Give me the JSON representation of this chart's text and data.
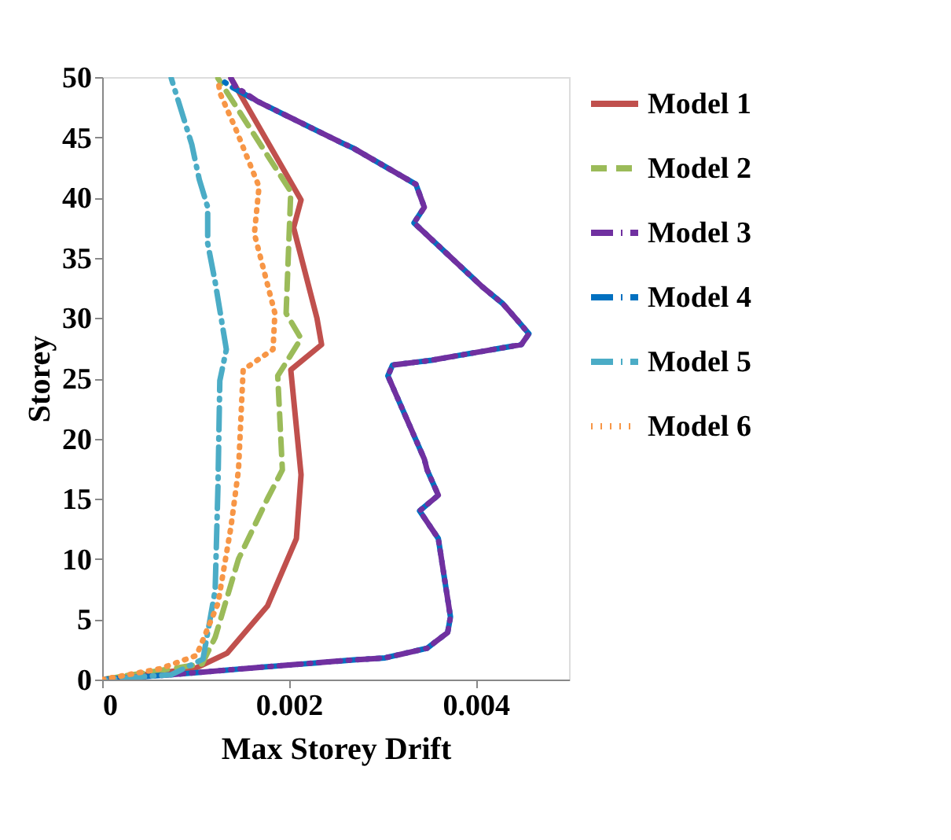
{
  "chart_data": {
    "type": "line",
    "xlabel": "Max Storey Drift",
    "ylabel": "Storey",
    "xlim": [
      0,
      0.005
    ],
    "xticks": [
      0,
      0.002,
      0.004
    ],
    "ylim": [
      0,
      50
    ],
    "yticks": [
      0,
      5,
      10,
      15,
      20,
      25,
      30,
      35,
      40,
      45,
      50
    ],
    "grid": false,
    "legend": "right",
    "marker": "none",
    "series": [
      {
        "name": "Model 1",
        "color": "#c0504d",
        "line_style": "solid",
        "x": [
          0,
          0.00099,
          0.00134,
          0.00177,
          0.00208,
          0.00213,
          0.00202,
          0.00235,
          0.0023,
          0.00205,
          0.00213,
          0.00138
        ],
        "values": [
          0,
          0.9,
          2.2,
          6.1,
          11.7,
          17,
          25.7,
          27.8,
          30,
          37.5,
          39.8,
          49.9
        ]
      },
      {
        "name": "Model 2",
        "color": "#9bbb59",
        "line_style": "dashed",
        "x": [
          0,
          0.00107,
          0.00121,
          0.00146,
          0.00177,
          0.00193,
          0.00188,
          0.00213,
          0.00197,
          0.00202,
          0.00177,
          0.00124
        ],
        "values": [
          0,
          1.3,
          3.5,
          10,
          15,
          17.4,
          25.2,
          28.3,
          30.4,
          40.5,
          43.5,
          49.9
        ]
      },
      {
        "name": "Model 3",
        "color": "#7030a0",
        "line_style": "dashdot",
        "x": [
          0,
          0.00074,
          0.00151,
          0.00264,
          0.00303,
          0.00348,
          0.0037,
          0.00373,
          0.0036,
          0.0034,
          0.0036,
          0.00348,
          0.00345,
          0.00306,
          0.00311,
          0.00353,
          0.00382,
          0.00449,
          0.00457,
          0.00437,
          0.00429,
          0.00407,
          0.00334,
          0.00345,
          0.00336,
          0.00269,
          0.00255,
          0.00166,
          0.00143,
          0.00138
        ],
        "values": [
          0,
          0.4,
          0.9,
          1.6,
          1.8,
          2.6,
          3.9,
          5.2,
          11.7,
          14,
          15.3,
          17.4,
          18.3,
          25.2,
          26.1,
          26.5,
          26.9,
          27.8,
          28.7,
          30.5,
          31.2,
          32.6,
          37.9,
          39.2,
          41.1,
          44.1,
          44.6,
          48,
          49.2,
          49.9
        ]
      },
      {
        "name": "Model 4",
        "color": "#0070c0",
        "line_style": "dashdot",
        "x": [
          0,
          0.00074,
          0.00151,
          0.00264,
          0.00303,
          0.00348,
          0.0037,
          0.00373,
          0.0036,
          0.0034,
          0.0036,
          0.00348,
          0.00345,
          0.00306,
          0.00311,
          0.00353,
          0.00382,
          0.00449,
          0.00457,
          0.00437,
          0.00429,
          0.00407,
          0.00334,
          0.00345,
          0.00336,
          0.00269,
          0.00255,
          0.00166,
          0.00138,
          0.00129
        ],
        "values": [
          0,
          0.4,
          0.9,
          1.6,
          1.8,
          2.6,
          3.9,
          5.2,
          11.7,
          14,
          15.3,
          17.4,
          18.3,
          25.2,
          26.1,
          26.5,
          26.9,
          27.8,
          28.7,
          30.5,
          31.2,
          32.6,
          37.9,
          39.2,
          41.1,
          44.1,
          44.6,
          48,
          49.2,
          49.7
        ]
      },
      {
        "name": "Model 5",
        "color": "#4bacc6",
        "line_style": "dashdot",
        "x": [
          0,
          0.00074,
          0.00108,
          0.00121,
          0.00124,
          0.00126,
          0.00133,
          0.00121,
          0.00113,
          0.00113,
          0.00104,
          0.00096,
          0.00074
        ],
        "values": [
          0,
          0.4,
          1.7,
          7.4,
          16,
          24.8,
          27.4,
          33,
          36.2,
          39.2,
          41.5,
          44.4,
          49.9
        ]
      },
      {
        "name": "Model 6",
        "color": "#f79646",
        "line_style": "dotted",
        "x": [
          0,
          0.00062,
          0.00101,
          0.00124,
          0.00138,
          0.00146,
          0.00151,
          0.00183,
          0.00185,
          0.00163,
          0.00168,
          0.00143,
          0.00126,
          0.00124
        ],
        "values": [
          0,
          0.9,
          2,
          6.3,
          12.7,
          17.4,
          25.7,
          27.4,
          30.4,
          37,
          40.9,
          45.7,
          48.7,
          49.9
        ]
      }
    ]
  }
}
